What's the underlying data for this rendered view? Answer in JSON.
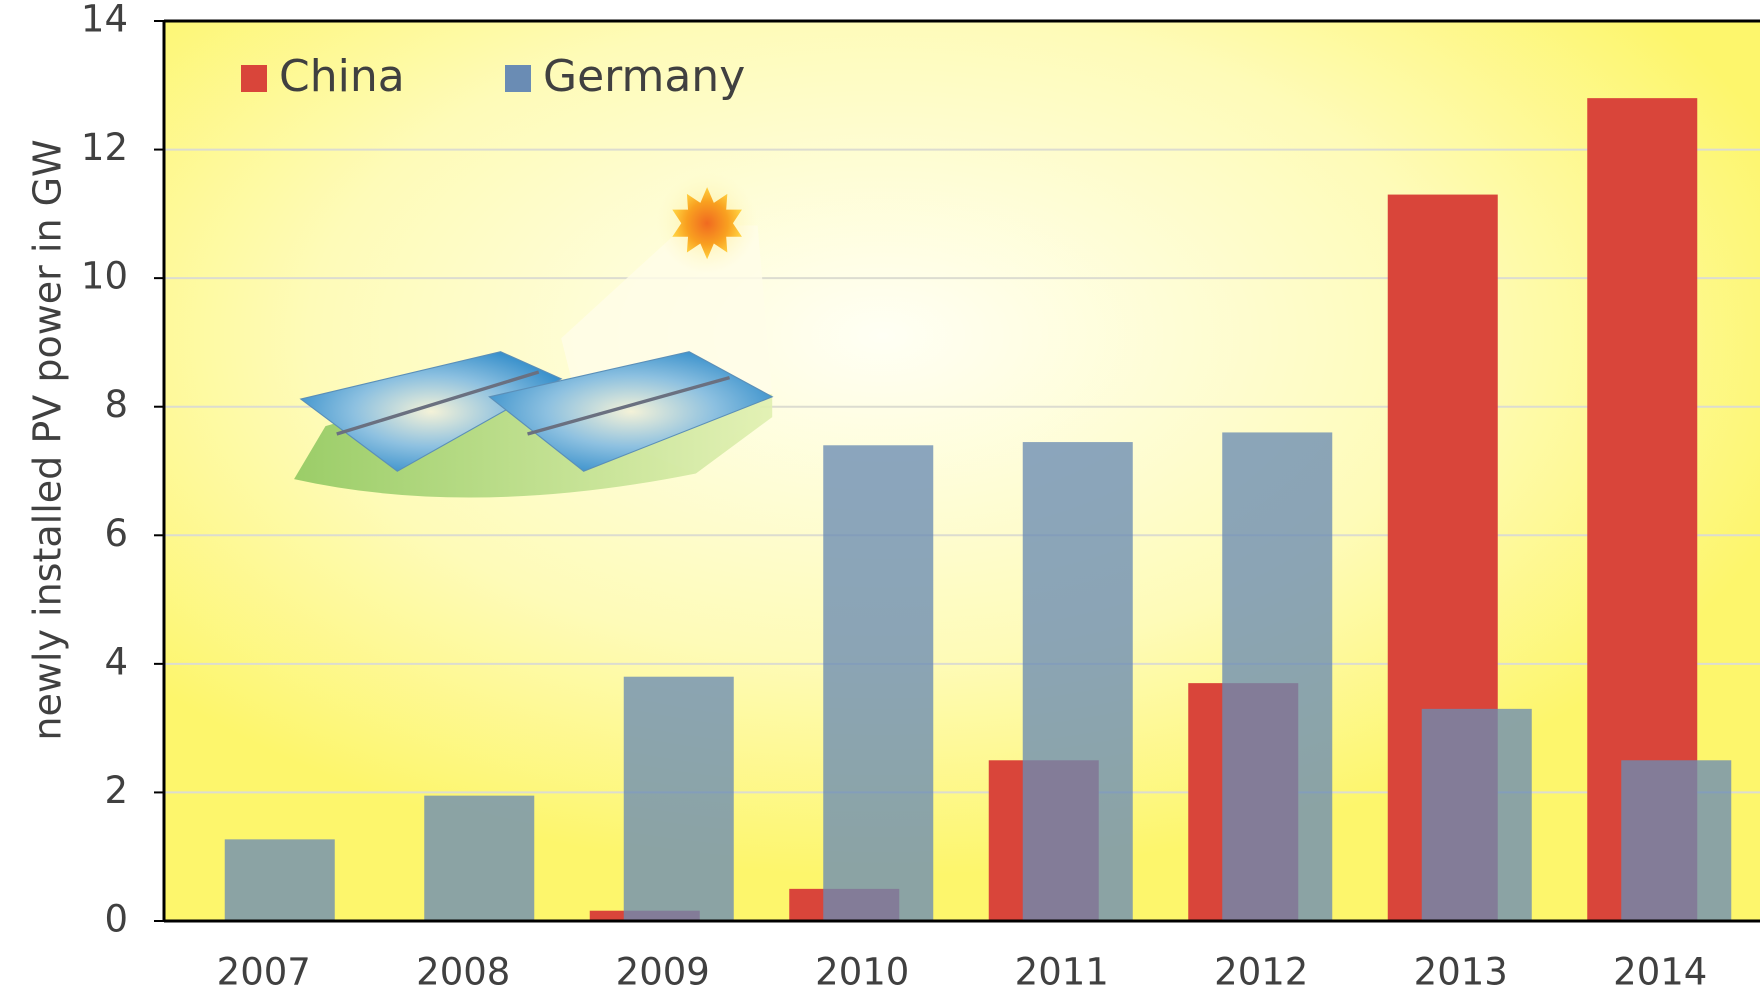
{
  "chart_data": {
    "type": "bar",
    "y_label": "newly installed PV power in GW",
    "categories": [
      "2007",
      "2008",
      "2009",
      "2010",
      "2011",
      "2012",
      "2013",
      "2014"
    ],
    "series": [
      {
        "name": "China",
        "color": "#d9453a",
        "values": [
          0,
          0.02,
          0.16,
          0.5,
          2.5,
          3.7,
          11.3,
          12.8
        ]
      },
      {
        "name": "Germany",
        "color": "#6a8cb4",
        "values": [
          1.27,
          1.95,
          3.8,
          7.4,
          7.45,
          7.6,
          3.3,
          2.5
        ]
      }
    ],
    "ylim": [
      0,
      14
    ],
    "yticks": [
      0,
      2,
      4,
      6,
      8,
      10,
      12,
      14
    ],
    "grid": true,
    "legend": "top-left"
  }
}
